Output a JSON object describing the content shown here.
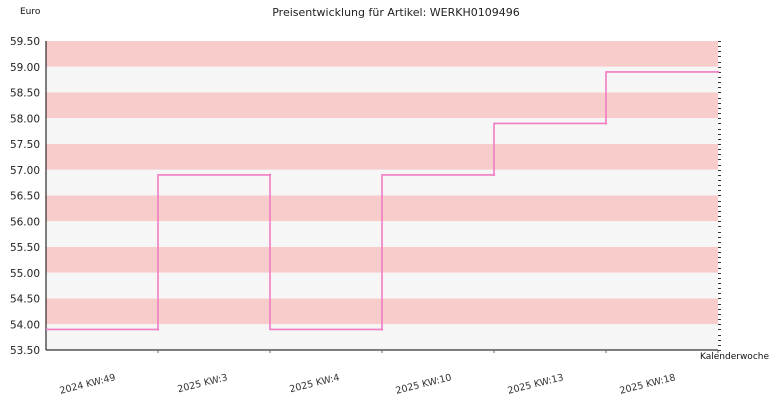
{
  "chart_data": {
    "type": "line",
    "step": true,
    "title": "Preisentwicklung für Artikel: WERKH0109496",
    "ylabel": "Euro",
    "xlabel": "Kalenderwoche",
    "ylim": [
      53.5,
      59.5
    ],
    "ytick_step": 0.5,
    "yticks": [
      "53.50",
      "54.00",
      "54.50",
      "55.00",
      "55.50",
      "56.00",
      "56.50",
      "57.00",
      "57.50",
      "58.00",
      "58.50",
      "59.00",
      "59.50"
    ],
    "categories": [
      "2024 KW:49",
      "2025 KW:3",
      "2025 KW:4",
      "2025 KW:10",
      "2025 KW:13",
      "2025 KW:18"
    ],
    "series": [
      {
        "values": [
          53.9,
          56.9,
          53.9,
          56.9,
          57.9,
          58.9
        ]
      }
    ],
    "colors": {
      "line": "#f07cc4",
      "band_dark": "#f9cccc",
      "band_light": "#f6f6f6",
      "axis": "#000000"
    }
  }
}
